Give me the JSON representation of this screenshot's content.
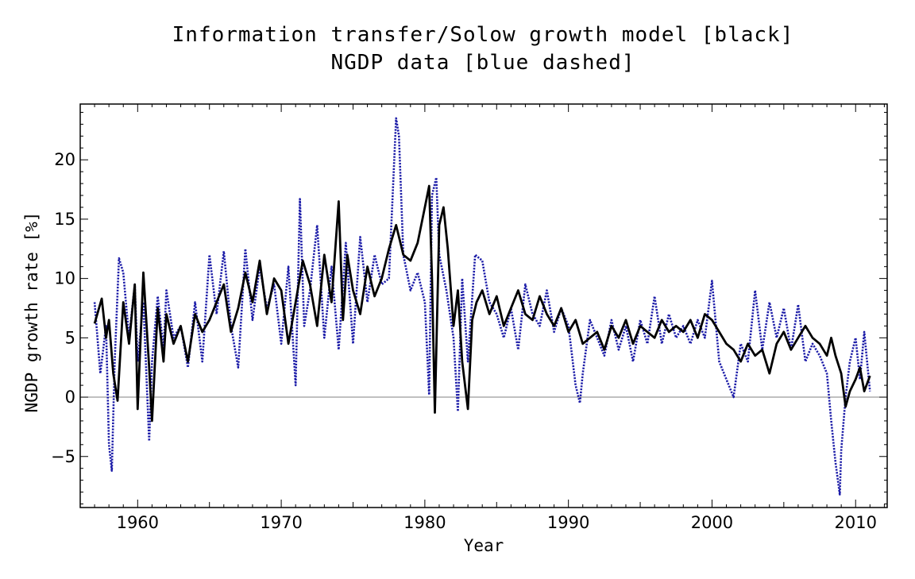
{
  "chart_data": {
    "type": "line",
    "title": "Information transfer/Solow growth model [black]",
    "subtitle": "NGDP data [blue dashed]",
    "xlabel": "Year",
    "ylabel": "NGDP growth rate [%]",
    "xlim": [
      1956.0,
      2012.2
    ],
    "ylim": [
      -9.3,
      24.7
    ],
    "xticks": [
      1960,
      1970,
      1980,
      1990,
      2000,
      2010
    ],
    "yticks": [
      -5,
      0,
      5,
      10,
      15,
      20
    ],
    "xtick_labels": [
      "1960",
      "1970",
      "1980",
      "1990",
      "2000",
      "2010"
    ],
    "ytick_labels": [
      "−5",
      "0",
      "5",
      "10",
      "15",
      "20"
    ],
    "reference_line": 0,
    "colors": {
      "model": "#000000",
      "data": "#1c1ca8",
      "zero_line": "#808080",
      "frame": "#000000"
    },
    "series": [
      {
        "name": "black",
        "style": "solid",
        "x": [
          1957.0,
          1957.5,
          1957.8,
          1958.0,
          1958.3,
          1958.6,
          1959.0,
          1959.4,
          1959.8,
          1960.0,
          1960.4,
          1960.8,
          1961.0,
          1961.4,
          1961.8,
          1962.0,
          1962.5,
          1963.0,
          1963.5,
          1964.0,
          1964.5,
          1965.0,
          1965.5,
          1966.0,
          1966.5,
          1967.0,
          1967.5,
          1968.0,
          1968.5,
          1969.0,
          1969.5,
          1970.0,
          1970.5,
          1971.0,
          1971.5,
          1972.0,
          1972.5,
          1973.0,
          1973.5,
          1974.0,
          1974.3,
          1974.6,
          1975.0,
          1975.5,
          1976.0,
          1976.5,
          1977.0,
          1977.5,
          1978.0,
          1978.5,
          1979.0,
          1979.5,
          1980.0,
          1980.3,
          1980.5,
          1980.7,
          1981.0,
          1981.3,
          1981.6,
          1982.0,
          1982.3,
          1982.6,
          1983.0,
          1983.3,
          1983.6,
          1984.0,
          1984.5,
          1985.0,
          1985.5,
          1986.0,
          1986.5,
          1987.0,
          1987.5,
          1988.0,
          1988.5,
          1989.0,
          1989.5,
          1990.0,
          1990.5,
          1991.0,
          1991.5,
          1992.0,
          1992.5,
          1993.0,
          1993.5,
          1994.0,
          1994.5,
          1995.0,
          1995.5,
          1996.0,
          1996.5,
          1997.0,
          1997.5,
          1998.0,
          1998.5,
          1999.0,
          1999.5,
          2000.0,
          2000.5,
          2001.0,
          2001.5,
          2002.0,
          2002.5,
          2003.0,
          2003.5,
          2004.0,
          2004.5,
          2005.0,
          2005.5,
          2006.0,
          2006.5,
          2007.0,
          2007.5,
          2008.0,
          2008.3,
          2008.6,
          2009.0,
          2009.3,
          2009.6,
          2010.0,
          2010.3,
          2010.6,
          2011.0
        ],
        "y": [
          6.2,
          8.3,
          5.0,
          6.5,
          2.0,
          -0.3,
          8.0,
          4.5,
          9.5,
          -1.0,
          10.5,
          2.5,
          -2.0,
          7.5,
          3.0,
          7.0,
          4.5,
          6.0,
          3.0,
          7.0,
          5.5,
          6.5,
          8.0,
          9.5,
          5.5,
          7.5,
          10.5,
          8.0,
          11.5,
          7.0,
          10.0,
          9.0,
          4.5,
          8.0,
          11.5,
          9.5,
          6.0,
          12.0,
          8.0,
          16.5,
          6.5,
          12.0,
          9.0,
          7.0,
          11.0,
          8.5,
          10.0,
          12.5,
          14.5,
          12.0,
          11.5,
          13.0,
          16.0,
          17.8,
          10.0,
          -1.3,
          14.5,
          16.0,
          12.5,
          6.0,
          9.0,
          3.0,
          -1.0,
          6.5,
          8.0,
          9.0,
          7.0,
          8.5,
          6.0,
          7.5,
          9.0,
          7.0,
          6.5,
          8.5,
          7.0,
          6.0,
          7.5,
          5.5,
          6.5,
          4.5,
          5.0,
          5.5,
          4.0,
          6.0,
          5.0,
          6.5,
          4.5,
          6.0,
          5.5,
          5.0,
          6.5,
          5.5,
          6.0,
          5.5,
          6.5,
          5.0,
          7.0,
          6.5,
          5.5,
          4.5,
          4.0,
          3.0,
          4.5,
          3.5,
          4.0,
          2.0,
          4.5,
          5.5,
          4.0,
          5.0,
          6.0,
          5.0,
          4.5,
          3.5,
          5.0,
          3.5,
          2.0,
          -0.8,
          0.5,
          1.5,
          2.5,
          0.5,
          1.8
        ]
      },
      {
        "name": "blue dashed",
        "style": "dashed",
        "x": [
          1957.0,
          1957.4,
          1957.8,
          1958.0,
          1958.2,
          1958.4,
          1958.7,
          1959.0,
          1959.4,
          1959.8,
          1960.0,
          1960.4,
          1960.8,
          1961.0,
          1961.4,
          1961.8,
          1962.0,
          1962.5,
          1963.0,
          1963.5,
          1964.0,
          1964.5,
          1965.0,
          1965.5,
          1966.0,
          1966.5,
          1967.0,
          1967.5,
          1968.0,
          1968.5,
          1969.0,
          1969.5,
          1970.0,
          1970.5,
          1971.0,
          1971.3,
          1971.6,
          1972.0,
          1972.5,
          1973.0,
          1973.5,
          1974.0,
          1974.5,
          1975.0,
          1975.5,
          1976.0,
          1976.5,
          1977.0,
          1977.5,
          1978.0,
          1978.2,
          1978.5,
          1979.0,
          1979.5,
          1980.0,
          1980.3,
          1980.5,
          1980.8,
          1981.0,
          1981.5,
          1982.0,
          1982.3,
          1982.6,
          1983.0,
          1983.5,
          1984.0,
          1984.5,
          1985.0,
          1985.5,
          1986.0,
          1986.5,
          1987.0,
          1987.5,
          1988.0,
          1988.5,
          1989.0,
          1989.5,
          1990.0,
          1990.5,
          1990.8,
          1991.0,
          1991.5,
          1992.0,
          1992.5,
          1993.0,
          1993.5,
          1994.0,
          1994.5,
          1995.0,
          1995.5,
          1996.0,
          1996.5,
          1997.0,
          1997.5,
          1998.0,
          1998.5,
          1999.0,
          1999.5,
          2000.0,
          2000.5,
          2001.0,
          2001.5,
          2002.0,
          2002.5,
          2003.0,
          2003.5,
          2004.0,
          2004.5,
          2005.0,
          2005.5,
          2006.0,
          2006.5,
          2007.0,
          2007.5,
          2008.0,
          2008.3,
          2008.6,
          2008.9,
          2009.0,
          2009.3,
          2009.6,
          2010.0,
          2010.3,
          2010.6,
          2011.0
        ],
        "y": [
          8.0,
          2.0,
          6.0,
          -4.0,
          -6.2,
          3.0,
          11.7,
          10.5,
          5.0,
          9.5,
          3.0,
          8.0,
          -3.7,
          3.0,
          8.5,
          4.0,
          9.0,
          5.0,
          6.0,
          2.5,
          8.0,
          3.0,
          12.0,
          7.0,
          12.3,
          6.0,
          2.5,
          12.5,
          6.5,
          11.0,
          7.5,
          9.5,
          4.5,
          11.0,
          1.0,
          16.7,
          6.0,
          9.0,
          14.5,
          5.0,
          11.0,
          4.0,
          13.0,
          4.5,
          13.5,
          8.0,
          12.0,
          9.5,
          10.0,
          23.5,
          22.0,
          12.0,
          9.0,
          10.5,
          8.0,
          0.2,
          17.0,
          18.5,
          12.0,
          9.0,
          5.0,
          -1.2,
          10.0,
          3.0,
          12.0,
          11.5,
          8.0,
          7.0,
          5.0,
          7.5,
          4.0,
          9.5,
          7.0,
          6.0,
          9.0,
          5.5,
          7.5,
          6.0,
          1.0,
          -0.5,
          2.0,
          6.5,
          5.0,
          3.5,
          6.5,
          4.0,
          6.0,
          3.0,
          6.5,
          4.5,
          8.5,
          4.5,
          7.0,
          5.0,
          6.0,
          4.5,
          6.5,
          5.0,
          9.8,
          3.0,
          1.5,
          0.0,
          4.5,
          3.0,
          9.0,
          4.0,
          8.0,
          5.0,
          7.5,
          4.0,
          7.8,
          3.0,
          4.5,
          3.5,
          2.0,
          -2.0,
          -5.5,
          -8.2,
          -4.5,
          0.0,
          3.0,
          5.0,
          1.5,
          5.5,
          0.5
        ]
      }
    ]
  }
}
